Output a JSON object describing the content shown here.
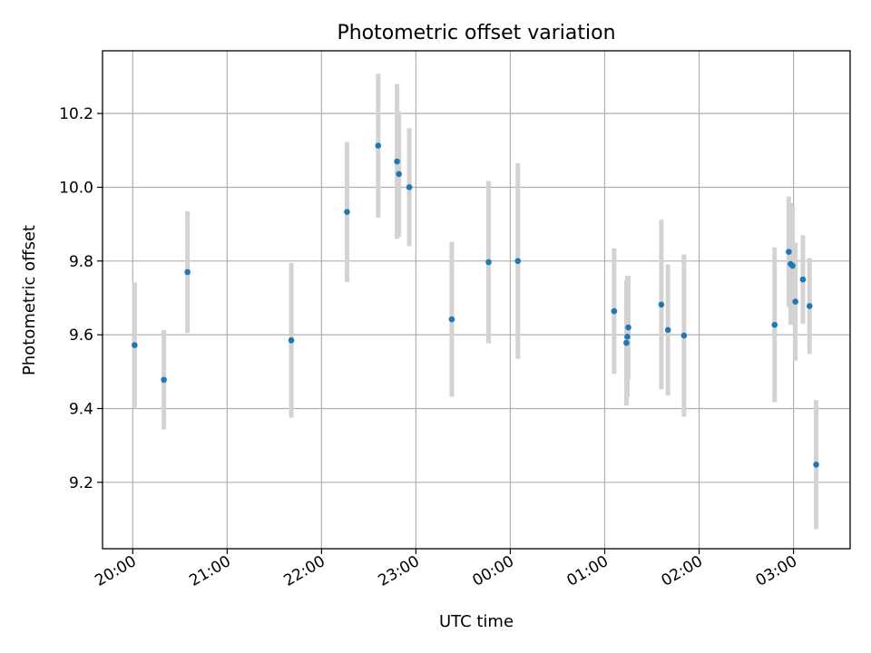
{
  "chart_data": {
    "type": "scatter",
    "title": "Photometric offset variation",
    "xlabel": "UTC time",
    "ylabel": "Photometric offset",
    "x_unit": "UTC, hours past midnight (values ≥ 24 are next day)",
    "xlim": [
      19.68,
      27.6
    ],
    "ylim": [
      9.02,
      10.37
    ],
    "x_ticks": [
      {
        "value": 20,
        "label": "20:00"
      },
      {
        "value": 21,
        "label": "21:00"
      },
      {
        "value": 22,
        "label": "22:00"
      },
      {
        "value": 23,
        "label": "23:00"
      },
      {
        "value": 24,
        "label": "00:00"
      },
      {
        "value": 25,
        "label": "01:00"
      },
      {
        "value": 26,
        "label": "02:00"
      },
      {
        "value": 27,
        "label": "03:00"
      }
    ],
    "y_ticks": [
      {
        "value": 9.2,
        "label": "9.2"
      },
      {
        "value": 9.4,
        "label": "9.4"
      },
      {
        "value": 9.6,
        "label": "9.6"
      },
      {
        "value": 9.8,
        "label": "9.8"
      },
      {
        "value": 10.0,
        "label": "10.0"
      },
      {
        "value": 10.2,
        "label": "10.2"
      }
    ],
    "grid": true,
    "marker_color": "#1f77b4",
    "errorbar_color": "#d3d3d3",
    "points": [
      {
        "x": 20.02,
        "y": 9.572,
        "err": 0.17
      },
      {
        "x": 20.33,
        "y": 9.478,
        "err": 0.135
      },
      {
        "x": 20.58,
        "y": 9.77,
        "err": 0.165
      },
      {
        "x": 21.68,
        "y": 9.585,
        "err": 0.21
      },
      {
        "x": 22.27,
        "y": 9.933,
        "err": 0.19
      },
      {
        "x": 22.6,
        "y": 10.113,
        "err": 0.195
      },
      {
        "x": 22.8,
        "y": 10.07,
        "err": 0.21
      },
      {
        "x": 22.82,
        "y": 10.036,
        "err": 0.17
      },
      {
        "x": 22.93,
        "y": 10.0,
        "err": 0.16
      },
      {
        "x": 23.38,
        "y": 9.642,
        "err": 0.21
      },
      {
        "x": 23.77,
        "y": 9.797,
        "err": 0.22
      },
      {
        "x": 24.08,
        "y": 9.8,
        "err": 0.265
      },
      {
        "x": 25.1,
        "y": 9.664,
        "err": 0.17
      },
      {
        "x": 25.23,
        "y": 9.578,
        "err": 0.17
      },
      {
        "x": 25.24,
        "y": 9.595,
        "err": 0.165
      },
      {
        "x": 25.25,
        "y": 9.62,
        "err": 0.14
      },
      {
        "x": 25.6,
        "y": 9.682,
        "err": 0.23
      },
      {
        "x": 25.67,
        "y": 9.613,
        "err": 0.178
      },
      {
        "x": 25.84,
        "y": 9.598,
        "err": 0.22
      },
      {
        "x": 26.8,
        "y": 9.627,
        "err": 0.21
      },
      {
        "x": 26.95,
        "y": 9.825,
        "err": 0.15
      },
      {
        "x": 26.97,
        "y": 9.792,
        "err": 0.165
      },
      {
        "x": 26.99,
        "y": 9.787,
        "err": 0.16
      },
      {
        "x": 27.02,
        "y": 9.69,
        "err": 0.16
      },
      {
        "x": 27.1,
        "y": 9.75,
        "err": 0.12
      },
      {
        "x": 27.17,
        "y": 9.678,
        "err": 0.13
      },
      {
        "x": 27.24,
        "y": 9.248,
        "err": 0.175
      }
    ]
  }
}
